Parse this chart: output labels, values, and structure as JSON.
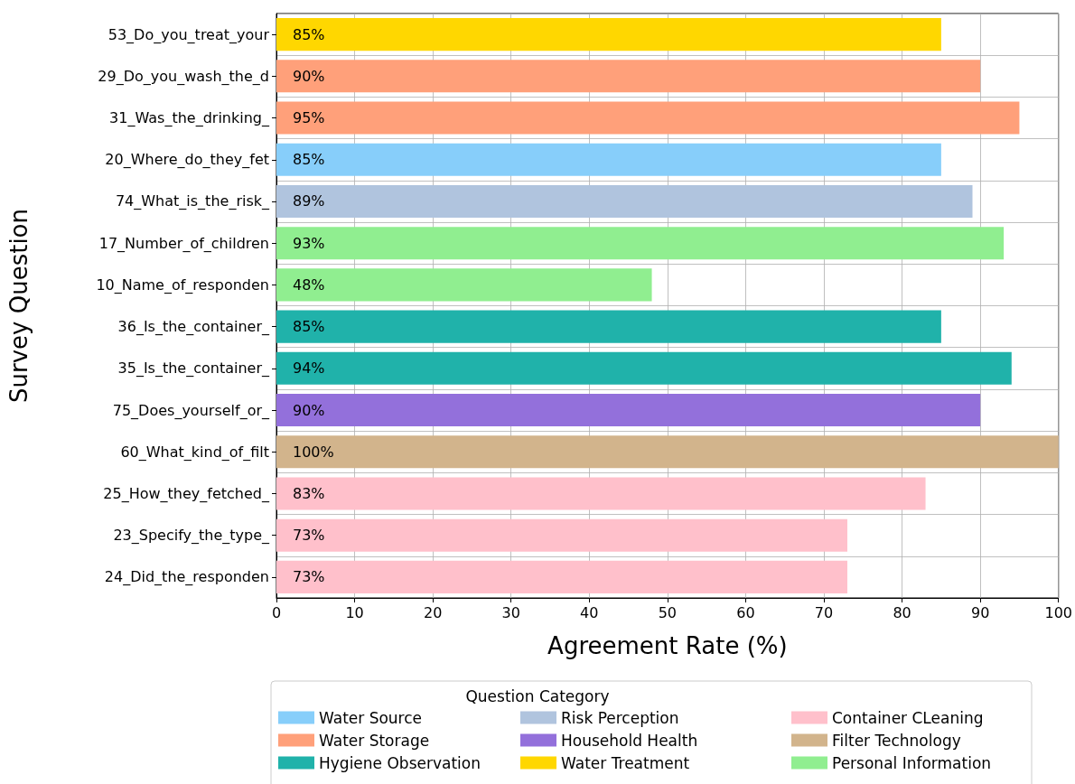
{
  "chart_data": {
    "type": "bar",
    "orientation": "horizontal",
    "stacked": true,
    "xlabel": "Agreement Rate (%)",
    "ylabel": "Survey Question",
    "legend_title": "Question Category",
    "categories": [
      "53_Do_you_treat_your",
      "29_Do_you_wash_the_d",
      "31_Was_the_drinking_",
      "20_Where_do_they_fet",
      "74_What_is_the_risk_",
      "17_Number_of_children",
      "10_Name_of_responden",
      "36_Is_the_container_",
      "35_Is_the_container_",
      "75_Does_yourself_or_",
      "60_What_kind_of_filt",
      "25_How_they_fetched_",
      "23_Specify_the_type_",
      "24_Did_the_responden"
    ],
    "xlim": [
      0,
      100
    ],
    "xticks": [
      0,
      10,
      20,
      30,
      40,
      50,
      60,
      70,
      80,
      90,
      100
    ],
    "grid": true,
    "legend": "bottom",
    "series": [
      {
        "name": "Water Source",
        "color": "#87cefa",
        "values": [
          null,
          null,
          null,
          85,
          null,
          null,
          null,
          null,
          null,
          null,
          null,
          null,
          null,
          null
        ],
        "value_labels": [
          null,
          null,
          null,
          "85%",
          null,
          null,
          null,
          null,
          null,
          null,
          null,
          null,
          null,
          null
        ]
      },
      {
        "name": "Water Storage",
        "color": "#ffa07a",
        "values": [
          null,
          90,
          95,
          null,
          null,
          null,
          null,
          null,
          null,
          null,
          null,
          null,
          null,
          null
        ],
        "value_labels": [
          null,
          "90%",
          "95%",
          null,
          null,
          null,
          null,
          null,
          null,
          null,
          null,
          null,
          null,
          null
        ]
      },
      {
        "name": "Hygiene Observation",
        "color": "#20b2aa",
        "values": [
          null,
          null,
          null,
          null,
          null,
          null,
          null,
          85,
          94,
          null,
          null,
          null,
          null,
          null
        ],
        "value_labels": [
          null,
          null,
          null,
          null,
          null,
          null,
          null,
          "85%",
          "94%",
          null,
          null,
          null,
          null,
          null
        ]
      },
      {
        "name": "Risk Perception",
        "color": "#b0c4de",
        "values": [
          null,
          null,
          null,
          null,
          89,
          null,
          null,
          null,
          null,
          null,
          null,
          null,
          null,
          null
        ],
        "value_labels": [
          null,
          null,
          null,
          null,
          "89%",
          null,
          null,
          null,
          null,
          null,
          null,
          null,
          null,
          null
        ]
      },
      {
        "name": "Household Health",
        "color": "#9370db",
        "values": [
          null,
          null,
          null,
          null,
          null,
          null,
          null,
          null,
          null,
          90,
          null,
          null,
          null,
          null
        ],
        "value_labels": [
          null,
          null,
          null,
          null,
          null,
          null,
          null,
          null,
          null,
          "90%",
          null,
          null,
          null,
          null
        ]
      },
      {
        "name": "Water Treatment",
        "color": "#ffd700",
        "values": [
          85,
          null,
          null,
          null,
          null,
          null,
          null,
          null,
          null,
          null,
          null,
          null,
          null,
          null
        ],
        "value_labels": [
          "85%",
          null,
          null,
          null,
          null,
          null,
          null,
          null,
          null,
          null,
          null,
          null,
          null,
          null
        ]
      },
      {
        "name": "Container CLeaning",
        "color": "#ffc0cb",
        "values": [
          null,
          null,
          null,
          null,
          null,
          null,
          null,
          null,
          null,
          null,
          null,
          83,
          73,
          73
        ],
        "value_labels": [
          null,
          null,
          null,
          null,
          null,
          null,
          null,
          null,
          null,
          null,
          null,
          "83%",
          "73%",
          "73%"
        ]
      },
      {
        "name": "Filter Technology",
        "color": "#d2b48c",
        "values": [
          null,
          null,
          null,
          null,
          null,
          null,
          null,
          null,
          null,
          null,
          100,
          null,
          null,
          null
        ],
        "value_labels": [
          null,
          null,
          null,
          null,
          null,
          null,
          null,
          null,
          null,
          null,
          "100%",
          null,
          null,
          null
        ]
      },
      {
        "name": "Personal Information",
        "color": "#90ee90",
        "values": [
          null,
          null,
          null,
          null,
          null,
          93,
          48,
          null,
          null,
          null,
          null,
          null,
          null,
          null
        ],
        "value_labels": [
          null,
          null,
          null,
          null,
          null,
          "93%",
          "48%",
          null,
          null,
          null,
          null,
          null,
          null,
          null
        ]
      }
    ]
  }
}
